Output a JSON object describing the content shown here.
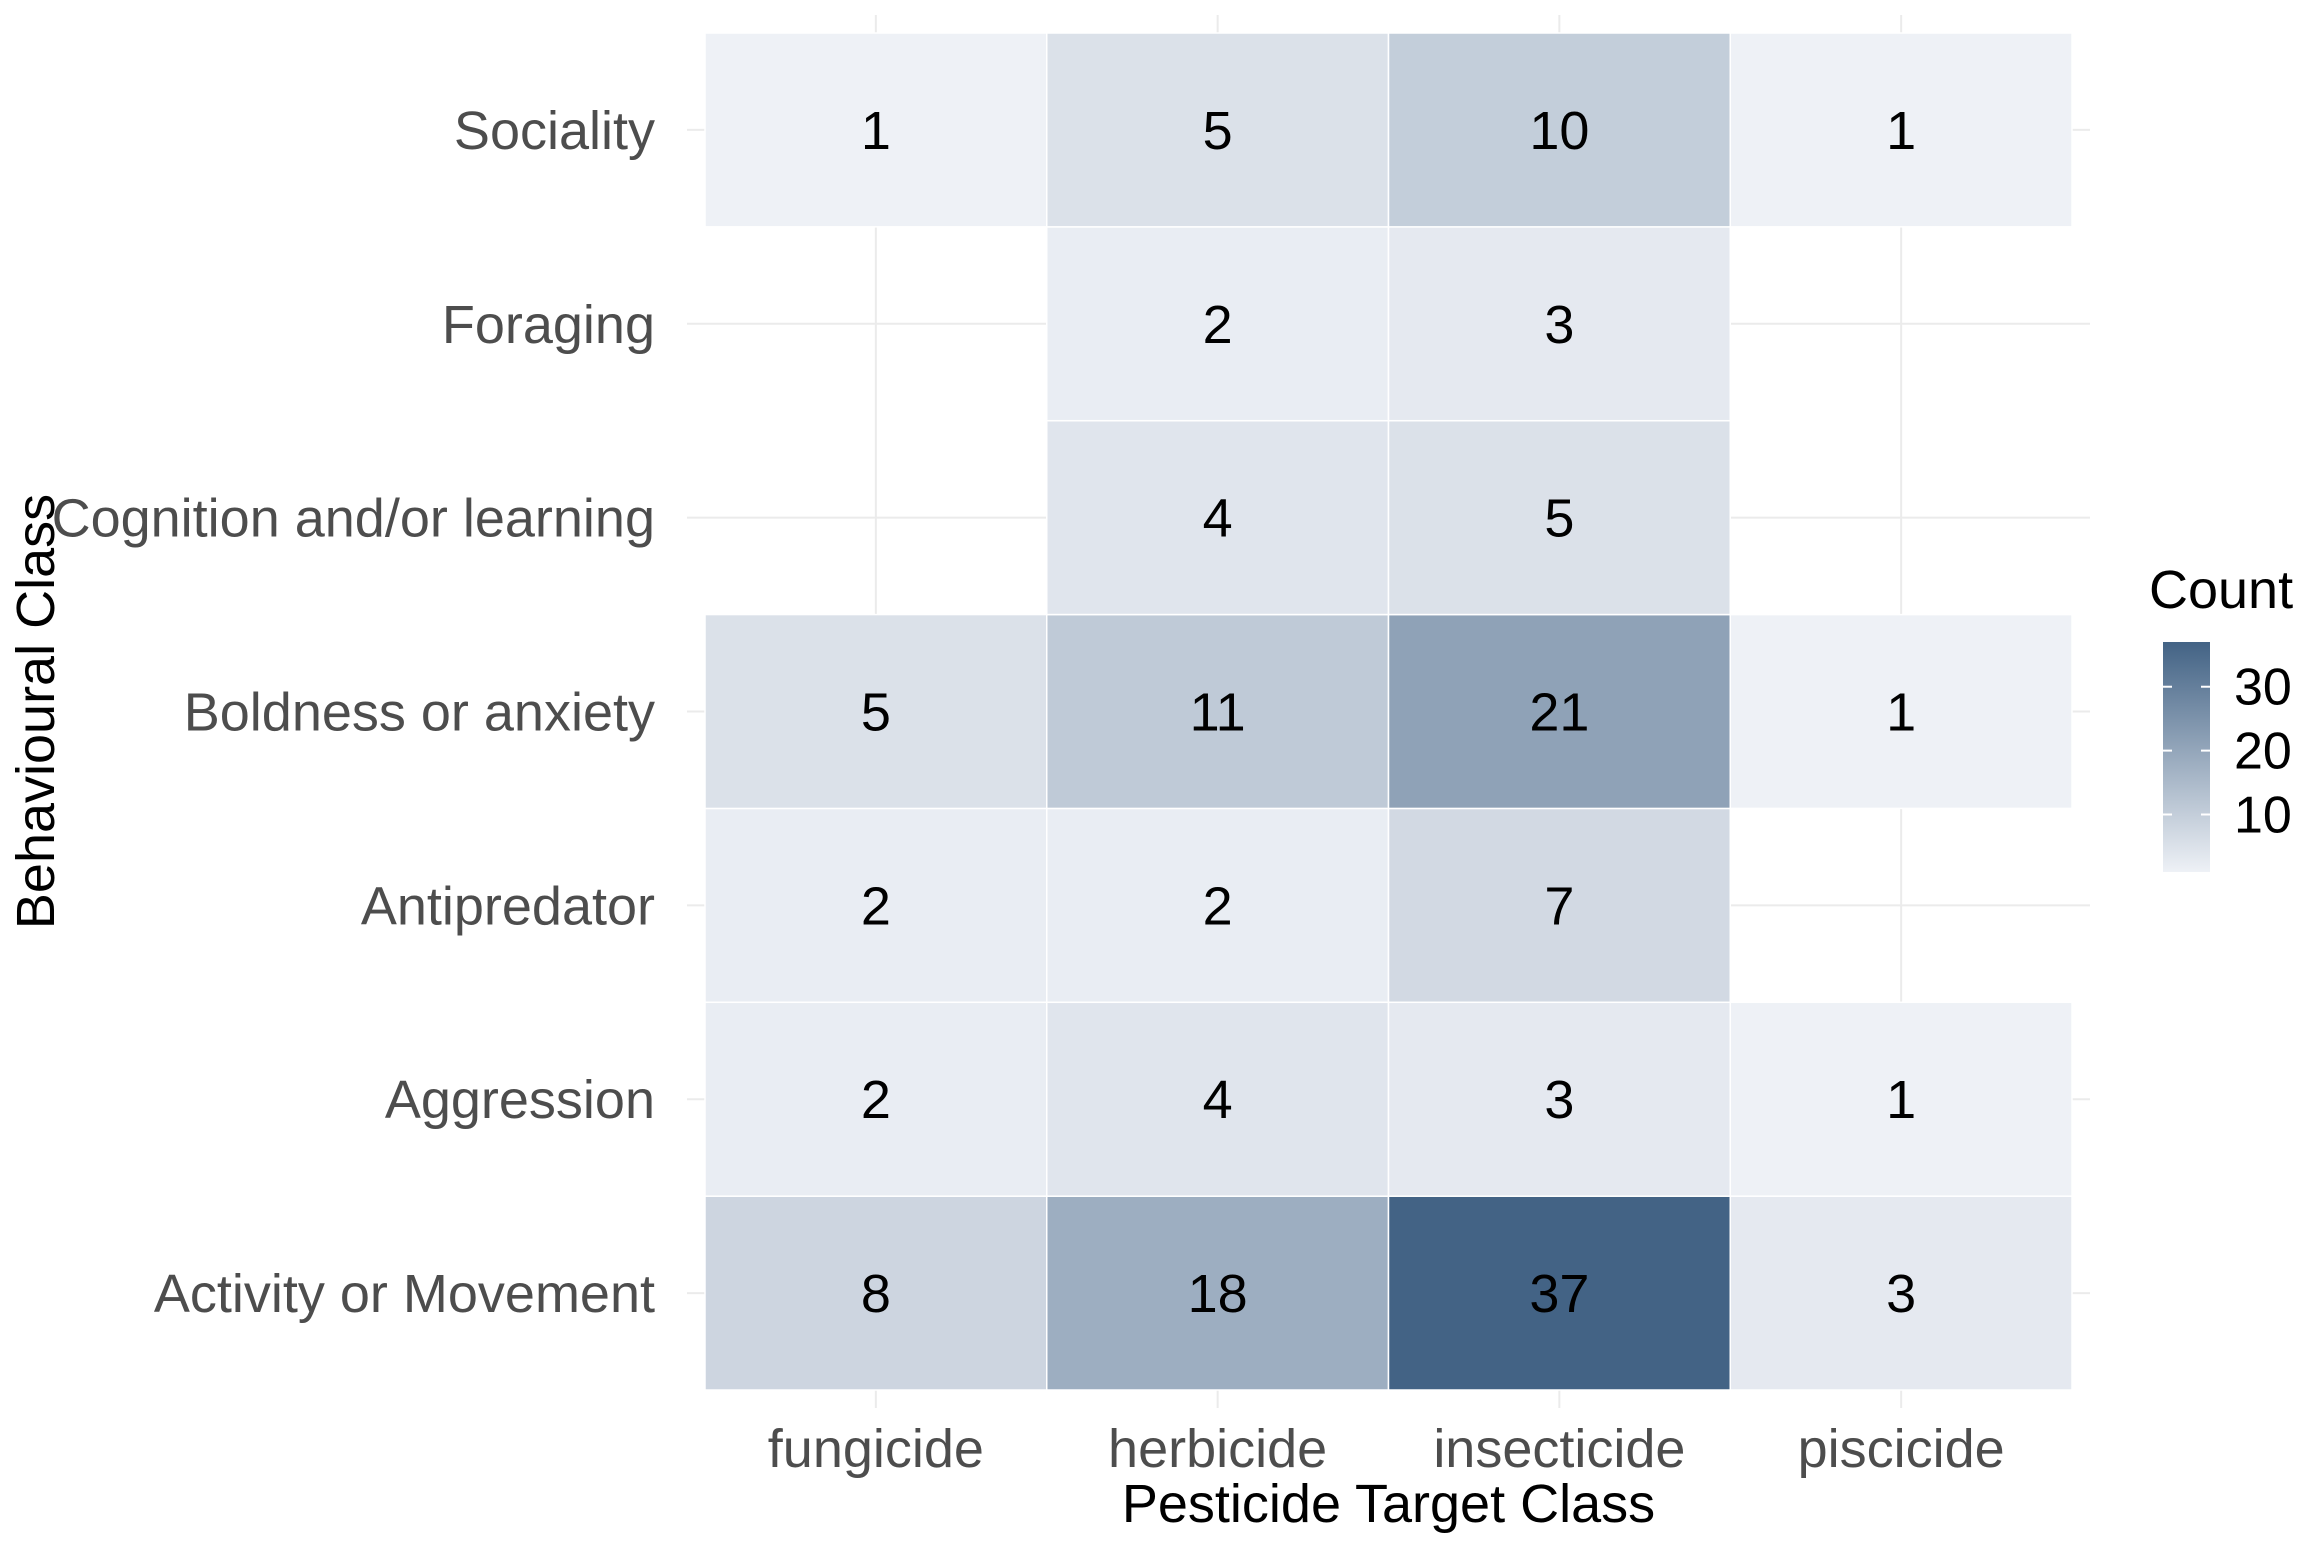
{
  "chart_data": {
    "type": "heatmap",
    "xlabel": "Pesticide Target Class",
    "ylabel": "Behavioural Class",
    "x_categories": [
      "fungicide",
      "herbicide",
      "insecticide",
      "piscicide"
    ],
    "y_categories": [
      "Activity or Movement",
      "Aggression",
      "Antipredator",
      "Boldness or anxiety",
      "Cognition and/or learning",
      "Foraging",
      "Sociality"
    ],
    "values": [
      [
        8,
        18,
        37,
        3
      ],
      [
        2,
        4,
        3,
        1
      ],
      [
        2,
        2,
        7,
        null
      ],
      [
        5,
        11,
        21,
        1
      ],
      [
        null,
        4,
        5,
        null
      ],
      [
        null,
        2,
        3,
        null
      ],
      [
        1,
        5,
        10,
        1
      ]
    ],
    "legend": {
      "title": "Count",
      "position": "right",
      "ticks": [
        10,
        20,
        30
      ],
      "range": [
        1,
        37
      ],
      "low_color": "#eef1f6",
      "high_color": "#436385"
    },
    "grid": true
  }
}
